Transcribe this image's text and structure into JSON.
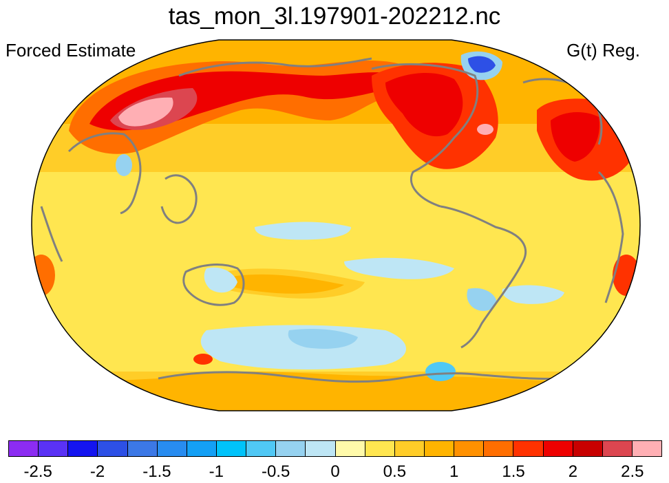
{
  "title": "tas_mon_3l.197901-202212.nc",
  "left_label": "Forced Estimate",
  "right_label": "G(t) Reg.",
  "colorbar": {
    "colors": [
      "#8c2cf2",
      "#5a32f5",
      "#1414f0",
      "#2d50e6",
      "#3c78e6",
      "#288cf0",
      "#14a0f5",
      "#00c3fa",
      "#50c8f5",
      "#96d2f0",
      "#bee6f5",
      "#fffaaa",
      "#ffe650",
      "#ffcd28",
      "#ffb400",
      "#ff9100",
      "#ff6e00",
      "#ff3200",
      "#ee0000",
      "#c80000",
      "#dc4650",
      "#ffafb4"
    ],
    "ticks": [
      "-2.5",
      "-2",
      "-1.5",
      "-1",
      "-0.5",
      "0",
      "0.5",
      "1",
      "1.5",
      "2",
      "2.5"
    ]
  }
}
